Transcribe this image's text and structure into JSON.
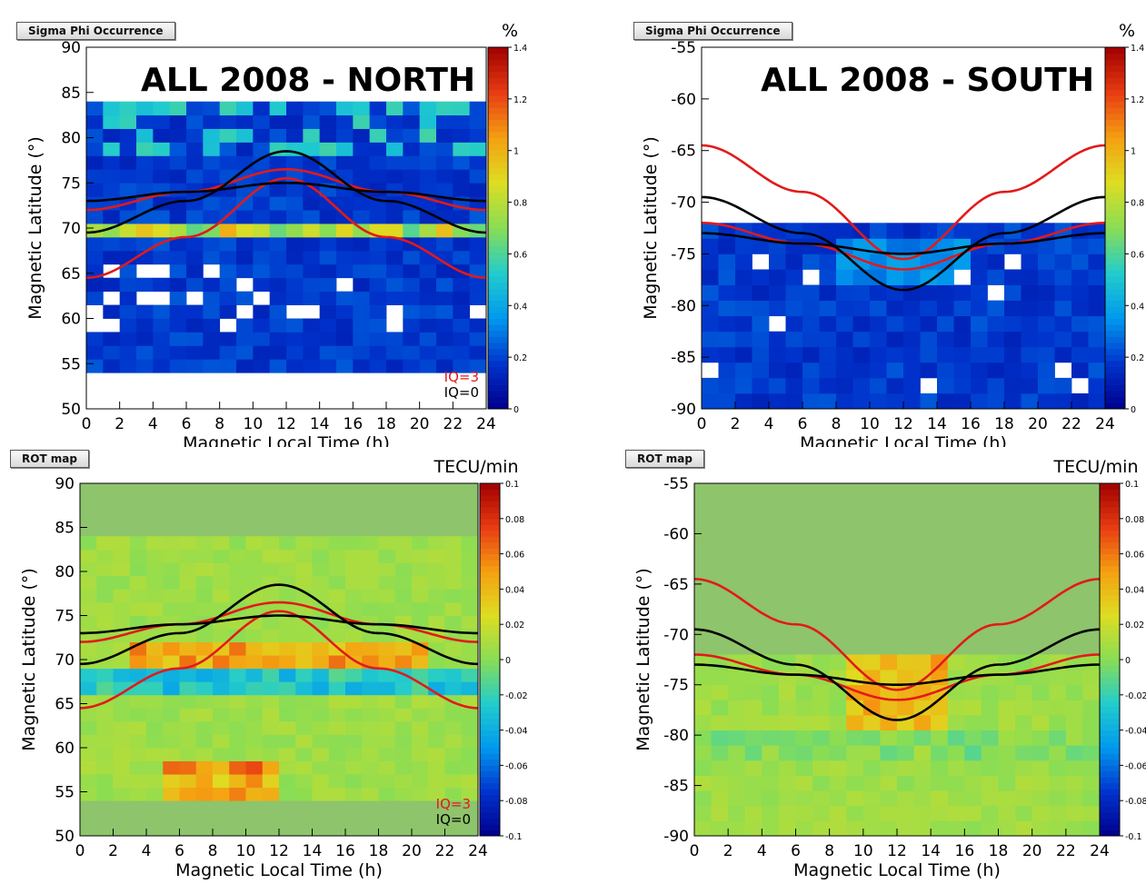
{
  "colors": {
    "iq3": "#e21a1a",
    "iq0": "#000000",
    "colormap": [
      "#00008c",
      "#0033cc",
      "#0099ee",
      "#22cccc",
      "#88dd55",
      "#dddd22",
      "#f5a011",
      "#e83c13",
      "#a00000"
    ],
    "empty_rot": "#8ec46b"
  },
  "chart_data": [
    {
      "id": "sigma_north",
      "panel_label": "Sigma Phi Occurrence",
      "type": "heatmap",
      "title": "ALL 2008 - NORTH",
      "xlabel": "Magnetic Local Time (h)",
      "ylabel": "Magnetic Latitude (°)",
      "xlim": [
        0,
        24
      ],
      "ylim": [
        50,
        90
      ],
      "x_ticks": [
        "0",
        "2",
        "4",
        "6",
        "8",
        "10",
        "12",
        "14",
        "16",
        "18",
        "20",
        "22",
        "24"
      ],
      "y_ticks": [
        "50",
        "55",
        "60",
        "65",
        "70",
        "75",
        "80",
        "85",
        "90"
      ],
      "colorbar": {
        "unit": "%",
        "range": [
          0,
          1.4
        ],
        "ticks": [
          "0",
          "0.2",
          "0.4",
          "0.6",
          "0.8",
          "1",
          "1.2",
          "1.4"
        ]
      },
      "data_lat_range": [
        54,
        83
      ],
      "legend": [
        "IQ=3",
        "IQ=0"
      ]
    },
    {
      "id": "sigma_south",
      "panel_label": "Sigma Phi Occurrence",
      "type": "heatmap",
      "title": "ALL 2008 - SOUTH",
      "xlabel": "Magnetic Local Time (h)",
      "ylabel": "Magnetic Latitude (°)",
      "xlim": [
        0,
        24
      ],
      "ylim": [
        -90,
        -55
      ],
      "x_ticks": [
        "0",
        "2",
        "4",
        "6",
        "8",
        "10",
        "12",
        "14",
        "16",
        "18",
        "20",
        "22",
        "24"
      ],
      "y_ticks": [
        "-90",
        "-85",
        "-80",
        "-75",
        "-70",
        "-65",
        "-60",
        "-55"
      ],
      "colorbar": {
        "unit": "%",
        "range": [
          0,
          1.4
        ],
        "ticks": [
          "0",
          "0.2",
          "0.4",
          "0.6",
          "0.8",
          "1",
          "1.2",
          "1.4"
        ]
      },
      "data_lat_range": [
        -90,
        -72
      ]
    },
    {
      "id": "rot_north",
      "panel_label": "ROT map",
      "type": "heatmap",
      "xlabel": "Magnetic Local Time (h)",
      "ylabel": "Magnetic Latitude (°)",
      "xlim": [
        0,
        24
      ],
      "ylim": [
        50,
        90
      ],
      "x_ticks": [
        "0",
        "2",
        "4",
        "6",
        "8",
        "10",
        "12",
        "14",
        "16",
        "18",
        "20",
        "22",
        "24"
      ],
      "y_ticks": [
        "50",
        "55",
        "60",
        "65",
        "70",
        "75",
        "80",
        "85",
        "90"
      ],
      "colorbar": {
        "unit": "TECU/min",
        "range": [
          -0.1,
          0.1
        ],
        "ticks": [
          "-0.1",
          "-0.08",
          "-0.06",
          "-0.04",
          "-0.02",
          "0",
          "0.02",
          "0.04",
          "0.06",
          "0.08",
          "0.1"
        ]
      },
      "data_lat_range": [
        54,
        83
      ],
      "legend": [
        "IQ=3",
        "IQ=0"
      ]
    },
    {
      "id": "rot_south",
      "panel_label": "ROT map",
      "type": "heatmap",
      "xlabel": "Magnetic Local Time (h)",
      "ylabel": "Magnetic Latitude (°)",
      "xlim": [
        0,
        24
      ],
      "ylim": [
        -90,
        -55
      ],
      "x_ticks": [
        "0",
        "2",
        "4",
        "6",
        "8",
        "10",
        "12",
        "14",
        "16",
        "18",
        "20",
        "22",
        "24"
      ],
      "y_ticks": [
        "-90",
        "-85",
        "-80",
        "-75",
        "-70",
        "-65",
        "-60",
        "-55"
      ],
      "colorbar": {
        "unit": "TECU/min",
        "range": [
          -0.1,
          0.1
        ],
        "ticks": [
          "-0.1",
          "-0.08",
          "-0.06",
          "-0.04",
          "-0.02",
          "0",
          "0.02",
          "0.04",
          "0.06",
          "0.08",
          "0.1"
        ]
      },
      "data_lat_range": [
        -90,
        -72
      ]
    }
  ],
  "ovals": {
    "north": {
      "iq3_equator": {
        "mlt": [
          0,
          6,
          12,
          18,
          24
        ],
        "lat": [
          64.5,
          69,
          75.5,
          69,
          64.5
        ]
      },
      "iq3_pole": {
        "mlt": [
          0,
          6,
          12,
          18,
          24
        ],
        "lat": [
          72.0,
          74,
          76.5,
          74,
          72.0
        ]
      },
      "iq0_equator": {
        "mlt": [
          0,
          6,
          12,
          18,
          24
        ],
        "lat": [
          69.5,
          73,
          78.5,
          73,
          69.5
        ]
      },
      "iq0_pole": {
        "mlt": [
          0,
          6,
          12,
          18,
          24
        ],
        "lat": [
          73.0,
          74,
          75.0,
          74,
          73.0
        ]
      }
    },
    "south": {
      "iq3_equator": {
        "mlt": [
          0,
          6,
          12,
          18,
          24
        ],
        "lat": [
          -64.5,
          -69,
          -75.5,
          -69,
          -64.5
        ]
      },
      "iq3_pole": {
        "mlt": [
          0,
          6,
          12,
          18,
          24
        ],
        "lat": [
          -72.0,
          -74,
          -76.5,
          -74,
          -72.0
        ]
      },
      "iq0_equator": {
        "mlt": [
          0,
          6,
          12,
          18,
          24
        ],
        "lat": [
          -69.5,
          -73,
          -78.5,
          -73,
          -69.5
        ]
      },
      "iq0_pole": {
        "mlt": [
          0,
          6,
          12,
          18,
          24
        ],
        "lat": [
          -73.0,
          -74,
          -75.0,
          -74,
          -73.0
        ]
      }
    }
  }
}
